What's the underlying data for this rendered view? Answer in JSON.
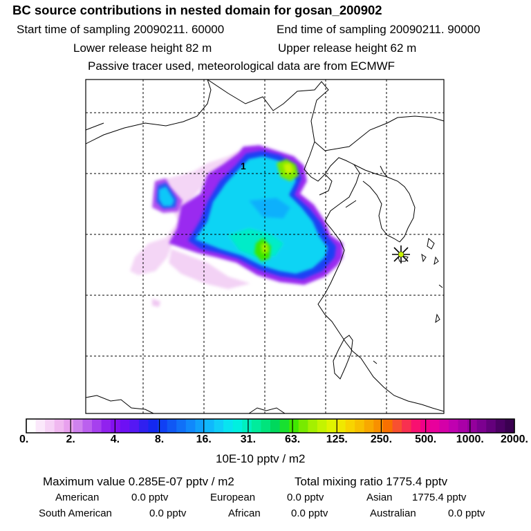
{
  "title": "BC  source contributions in nested domain for gosan_200902",
  "header": {
    "start_time": "Start time of sampling 20090211. 60000",
    "end_time": "End time of sampling 20090211. 90000",
    "lower_release": "Lower release height   82 m",
    "upper_release": "Upper release height   62 m",
    "tracer_note": "Passive tracer used, meteorological data are from ECMWF"
  },
  "map": {
    "contour_label": "1",
    "receptor_marker": "star-marker"
  },
  "colorbar": {
    "tick_labels": [
      "0.",
      "2.",
      "4.",
      "8.",
      "16.",
      "31.",
      "63.",
      "125.",
      "250.",
      "500.",
      "1000.",
      "2000."
    ],
    "colors": [
      "#ffffff",
      "#fbe8fb",
      "#f6d2f6",
      "#f0b8f0",
      "#e8a0ee",
      "#cf82ee",
      "#bb60ee",
      "#a640ee",
      "#9122ee",
      "#8410f0",
      "#6e10f4",
      "#5518f4",
      "#3020f0",
      "#1428f0",
      "#1040f4",
      "#1058f4",
      "#1070f8",
      "#1088fc",
      "#10a0fc",
      "#10b8fc",
      "#10cef8",
      "#08e4f0",
      "#00f0e0",
      "#00f0c0",
      "#00ec9c",
      "#00e47c",
      "#00d85c",
      "#18e030",
      "#40e800",
      "#78ea00",
      "#a4f000",
      "#c4f400",
      "#e0f400",
      "#f0e800",
      "#f8d400",
      "#f8c000",
      "#f8a800",
      "#f89000",
      "#f87000",
      "#f85030",
      "#f83050",
      "#f81070",
      "#f00088",
      "#e8009c",
      "#d400a8",
      "#c000b0",
      "#aa00a8",
      "#94009c",
      "#7c0090",
      "#64007c",
      "#4c0064",
      "#3a0050"
    ],
    "unit_label": "10E-10 pptv / m2"
  },
  "stats": {
    "max_value": "Maximum value  0.285E-07 pptv / m2",
    "total_mixing": "Total mixing ratio     1775.4 pptv"
  },
  "sources": [
    {
      "name": "American",
      "value": "0.0 pptv"
    },
    {
      "name": "European",
      "value": "0.0 pptv"
    },
    {
      "name": "Asian",
      "value": "1775.4 pptv"
    },
    {
      "name": "South American",
      "value": "0.0 pptv"
    },
    {
      "name": "African",
      "value": "0.0 pptv"
    },
    {
      "name": "Australian",
      "value": "0.0 pptv"
    }
  ]
}
